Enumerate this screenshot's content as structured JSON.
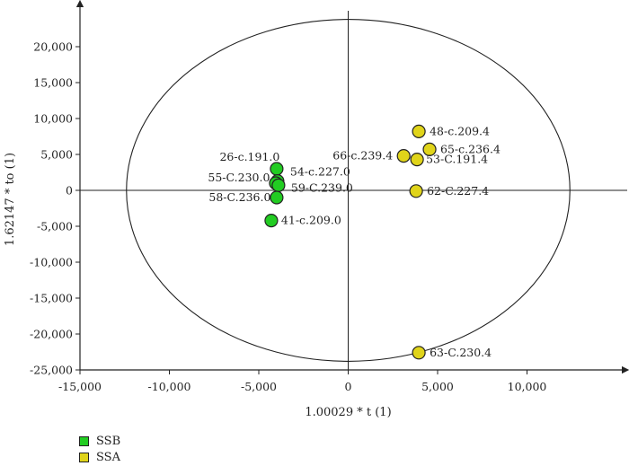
{
  "chart_data": {
    "type": "scatter",
    "xlabel": "1.00029 * t (1)",
    "ylabel": "1.62147 * to (1)",
    "xlim": [
      -15000,
      15000
    ],
    "ylim": [
      -25000,
      25000
    ],
    "xticks": [
      -15000,
      -10000,
      -5000,
      0,
      5000,
      10000
    ],
    "xtick_labels": [
      "-15,000",
      "-10,000",
      "-5,000",
      "0",
      "5,000",
      "10,000"
    ],
    "yticks": [
      20000,
      15000,
      10000,
      5000,
      0,
      -5000,
      -10000,
      -15000,
      -20000,
      -25000
    ],
    "ytick_labels": [
      "20,000",
      "15,000",
      "10,000",
      "5,000",
      "0",
      "-5,000",
      "-10,000",
      "-15,000",
      "-20,000",
      "-25,000"
    ],
    "ellipse": {
      "cx": 0,
      "cy": 0,
      "rx": 12400,
      "ry": 23800
    },
    "series": [
      {
        "name": "SSB",
        "color": "#22cc22",
        "points": [
          {
            "label": "26-c.191.0",
            "x": -4000,
            "y": 3000
          },
          {
            "label": "54-c.227.0",
            "x": -3950,
            "y": 1300
          },
          {
            "label": "55-C.230.0",
            "x": -4050,
            "y": 1000
          },
          {
            "label": "59-C.239.0",
            "x": -3900,
            "y": 700
          },
          {
            "label": "58-C.236.0",
            "x": -4000,
            "y": -1000
          },
          {
            "label": "41-c.209.0",
            "x": -4300,
            "y": -4200
          }
        ]
      },
      {
        "name": "SSA",
        "color": "#e0d41a",
        "points": [
          {
            "label": "48-c.209.4",
            "x": 3950,
            "y": 8200
          },
          {
            "label": "65-c.236.4",
            "x": 4550,
            "y": 5700
          },
          {
            "label": "66-c.239.4",
            "x": 3100,
            "y": 4800
          },
          {
            "label": "53-C.191.4",
            "x": 3850,
            "y": 4300
          },
          {
            "label": "62-C.227.4",
            "x": 3800,
            "y": -100
          },
          {
            "label": "63-C.230.4",
            "x": 3950,
            "y": -22600
          }
        ]
      }
    ]
  }
}
